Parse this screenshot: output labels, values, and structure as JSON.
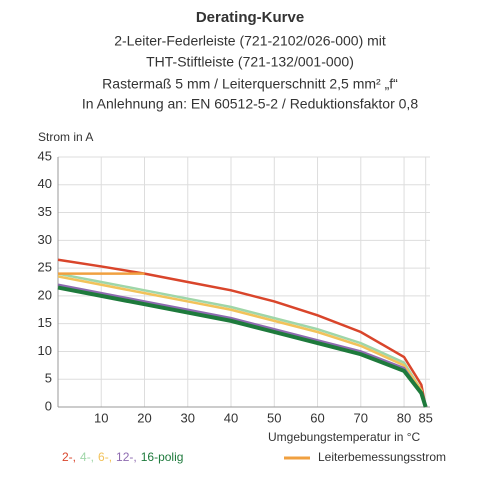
{
  "chart_data": {
    "type": "line",
    "title": "Derating-Kurve",
    "subtitle": [
      "2-Leiter-Federleiste (721-2102/026-000) mit",
      "THT-Stiftleiste (721-132/001-000)",
      "Rastermaß 5 mm / Leiterquerschnitt 2,5 mm² „f“",
      "In Anlehnung an: EN 60512-5-2 / Reduktionsfaktor 0,8"
    ],
    "y_label": "Strom in A",
    "x_label": "Umgebungstemperatur in °C",
    "x": [
      0,
      10,
      20,
      30,
      40,
      50,
      60,
      70,
      80,
      84,
      85
    ],
    "series": [
      {
        "name": "2-,",
        "color": "#d9452b",
        "values": [
          26.5,
          25.3,
          24,
          22.5,
          21,
          19,
          16.5,
          13.5,
          9,
          4,
          0
        ]
      },
      {
        "name": "4-,",
        "color": "#9fd6a8",
        "values": [
          24,
          22.5,
          21,
          19.5,
          18,
          16,
          14,
          11.5,
          8,
          3,
          0
        ]
      },
      {
        "name": "6-,",
        "color": "#f2c25a",
        "values": [
          23.5,
          22,
          20.5,
          19,
          17.5,
          15.5,
          13.5,
          11,
          7.5,
          3,
          0
        ]
      },
      {
        "name": "12-,",
        "color": "#8e6bb0",
        "values": [
          22,
          20.5,
          19,
          17.5,
          16,
          14,
          12,
          10,
          7,
          2.5,
          0
        ]
      },
      {
        "name": "16-polig",
        "color": "#1e7a3c",
        "values": [
          21.5,
          20,
          18.5,
          17,
          15.5,
          13.5,
          11.5,
          9.5,
          6.5,
          2.5,
          0
        ]
      },
      {
        "name": "Leiterbemessungsstrom",
        "color": "#f0a040",
        "values": [
          24,
          24,
          24,
          null,
          null,
          null,
          null,
          null,
          null,
          null,
          null
        ]
      }
    ],
    "xlim": [
      0,
      86
    ],
    "ylim": [
      0,
      45
    ],
    "xticks": [
      10,
      20,
      30,
      40,
      50,
      60,
      70,
      80,
      85
    ],
    "yticks": [
      0,
      5,
      10,
      15,
      20,
      25,
      30,
      35,
      40,
      45
    ],
    "grid": true
  }
}
